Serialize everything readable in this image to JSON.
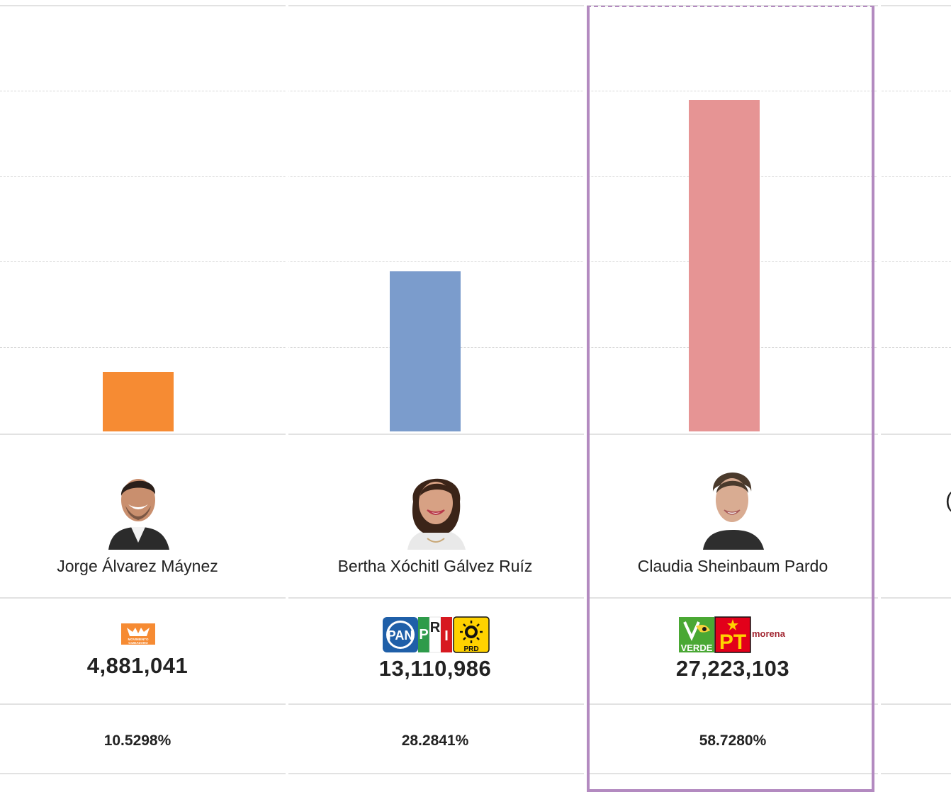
{
  "chart_data": {
    "type": "bar",
    "categories": [
      "Jorge Álvarez Máynez",
      "Bertha Xóchitl Gálvez Ruíz",
      "Claudia Sheinbaum Pardo",
      ""
    ],
    "values": [
      4881041,
      13110986,
      27223103,
      null
    ],
    "ylim": [
      0,
      35000000
    ],
    "grid": true,
    "colors": [
      "#f68b33",
      "#7b9ccc",
      "#e69494"
    ]
  },
  "candidates": [
    {
      "name": "Jorge Álvarez Máynez",
      "votes": "4,881,041",
      "percent": "10.5298%",
      "party_logos": [
        "MOVIMIENTO CIUDADANO"
      ],
      "bar_color": "#f68b33",
      "avatar_icon": "candidate-photo-icon"
    },
    {
      "name": "Bertha Xóchitl Gálvez Ruíz",
      "votes": "13,110,986",
      "percent": "28.2841%",
      "party_logos": [
        "PAN",
        "PRI",
        "PRD"
      ],
      "bar_color": "#7b9ccc",
      "avatar_icon": "candidate-photo-icon"
    },
    {
      "name": "Claudia Sheinbaum Pardo",
      "votes": "27,223,103",
      "percent": "58.7280%",
      "party_logos": [
        "VERDE",
        "PT",
        "morena"
      ],
      "bar_color": "#e69494",
      "avatar_icon": "candidate-photo-icon"
    }
  ],
  "logos": {
    "mc_top": "MOVIMIENTO",
    "mc_bottom": "CIUDADANO",
    "pan": "PAN",
    "pri_p": "P",
    "pri_r": "R",
    "pri_i": "I",
    "prd": "PRD",
    "verde": "VERDE",
    "pt": "PT",
    "morena": "morena"
  },
  "highlight_color": "#b38ac0",
  "cut_off_glyph": "("
}
